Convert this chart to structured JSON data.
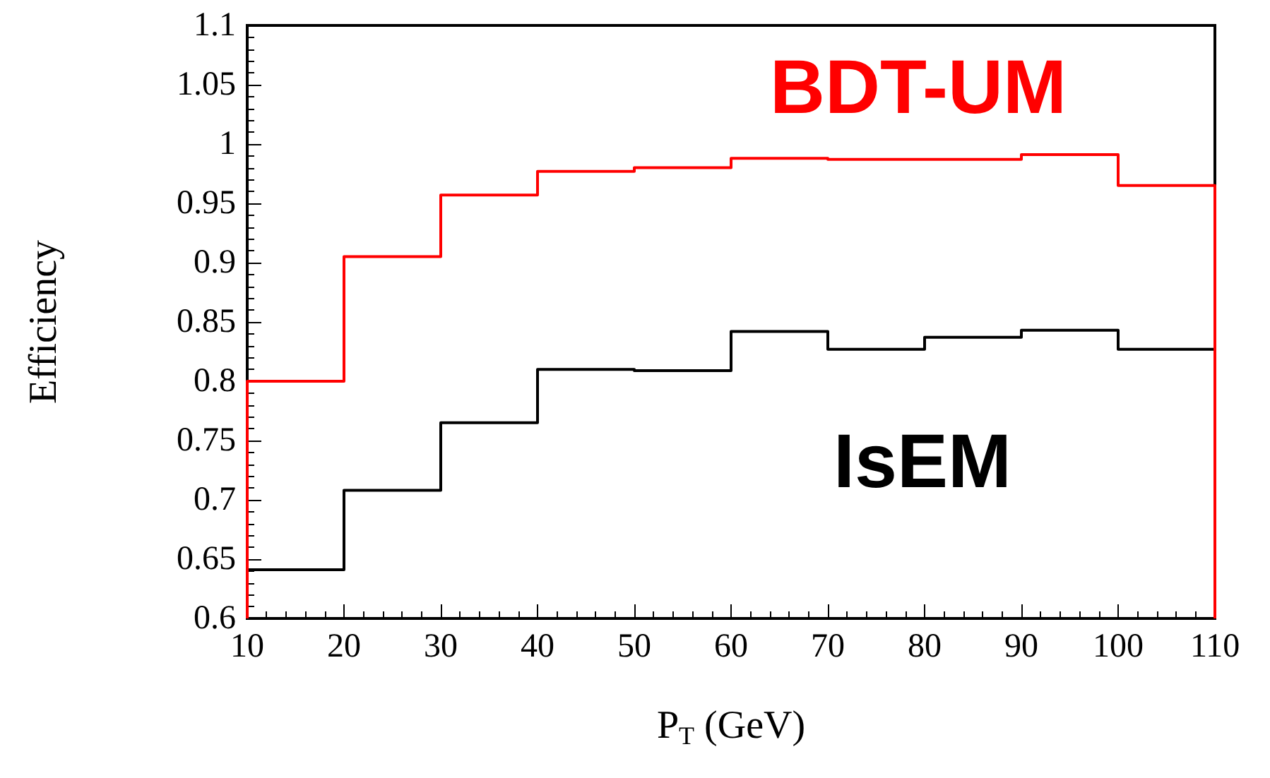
{
  "chart_data": {
    "type": "histogram",
    "xlabel": "P$_{T}$ (GeV)",
    "ylabel": "Efficiency",
    "bins": [
      10,
      20,
      30,
      40,
      50,
      60,
      70,
      80,
      90,
      100,
      110
    ],
    "series": [
      {
        "name": "IsEM",
        "color": "#000000",
        "values": [
          0.641,
          0.708,
          0.765,
          0.81,
          0.809,
          0.842,
          0.827,
          0.837,
          0.843,
          0.827
        ]
      },
      {
        "name": "BDT-UM",
        "color": "#ff0000",
        "values": [
          0.8,
          0.905,
          0.957,
          0.977,
          0.98,
          0.988,
          0.987,
          0.987,
          0.991,
          0.965
        ]
      }
    ],
    "xlim": [
      10,
      110
    ],
    "xticks": [
      10,
      20,
      30,
      40,
      50,
      60,
      70,
      80,
      90,
      100,
      110
    ],
    "ylim": [
      0.6,
      1.1
    ],
    "yticks": [
      0.6,
      0.65,
      0.7,
      0.75,
      0.8,
      0.85,
      0.9,
      0.95,
      1,
      1.05,
      1.1
    ],
    "grid": false,
    "legend": false
  }
}
